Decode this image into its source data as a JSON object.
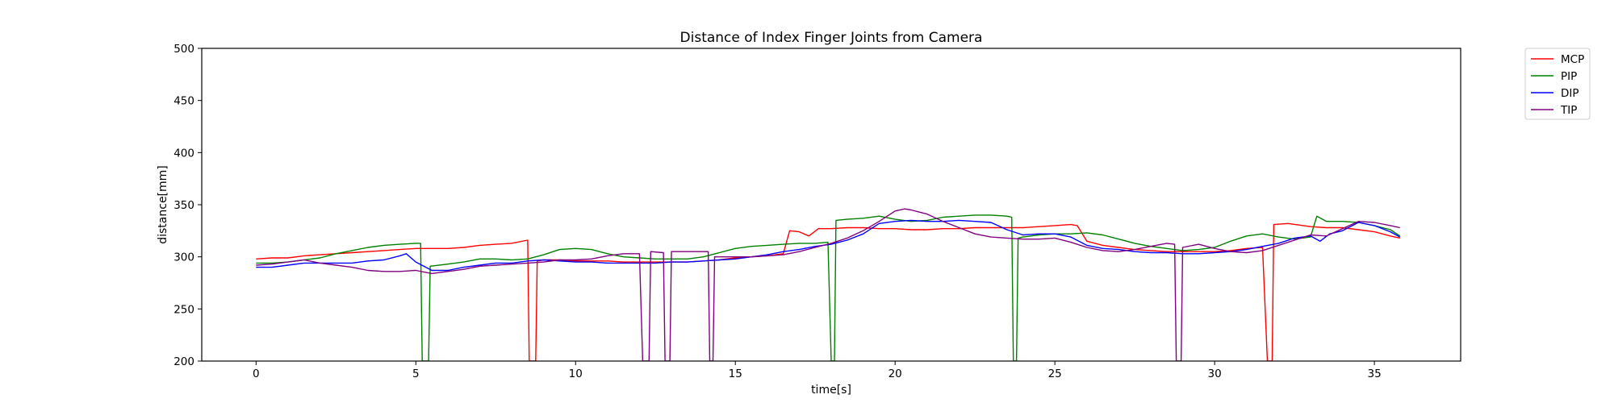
{
  "chart_data": {
    "type": "line",
    "title": "Distance of Index Finger Joints from Camera",
    "xlabel": "time[s]",
    "ylabel": "distance[mm]",
    "xlim": [
      -1.7,
      37.7
    ],
    "ylim": [
      200,
      500
    ],
    "xticks": [
      0,
      5,
      10,
      15,
      20,
      25,
      30,
      35
    ],
    "yticks": [
      200,
      250,
      300,
      350,
      400,
      450,
      500
    ],
    "grid": false,
    "legend": "outside-top-right",
    "series": [
      {
        "name": "MCP",
        "color": "#ff0000",
        "points": [
          [
            0,
            298
          ],
          [
            0.5,
            299
          ],
          [
            1,
            299
          ],
          [
            1.5,
            301
          ],
          [
            2,
            302
          ],
          [
            2.5,
            303
          ],
          [
            3,
            304
          ],
          [
            3.5,
            305
          ],
          [
            4,
            306
          ],
          [
            4.5,
            307
          ],
          [
            5,
            308
          ],
          [
            5.5,
            308
          ],
          [
            6,
            308
          ],
          [
            6.5,
            309
          ],
          [
            7,
            311
          ],
          [
            7.5,
            312
          ],
          [
            8,
            313
          ],
          [
            8.5,
            316
          ],
          [
            8.55,
            200
          ],
          [
            8.75,
            200
          ],
          [
            8.8,
            296
          ],
          [
            9,
            297
          ],
          [
            9.5,
            297
          ],
          [
            10,
            296
          ],
          [
            10.5,
            296
          ],
          [
            11,
            296
          ],
          [
            11.5,
            295
          ],
          [
            12,
            295
          ],
          [
            12.5,
            295
          ],
          [
            13,
            295
          ],
          [
            13.5,
            295
          ],
          [
            14,
            296
          ],
          [
            14.5,
            297
          ],
          [
            15,
            299
          ],
          [
            15.5,
            300
          ],
          [
            16,
            301
          ],
          [
            16.5,
            303
          ],
          [
            16.7,
            325
          ],
          [
            17,
            324
          ],
          [
            17.3,
            320
          ],
          [
            17.6,
            327
          ],
          [
            18,
            327
          ],
          [
            18.5,
            328
          ],
          [
            19,
            328
          ],
          [
            19.5,
            327
          ],
          [
            20,
            327
          ],
          [
            20.5,
            326
          ],
          [
            21,
            326
          ],
          [
            21.5,
            327
          ],
          [
            22,
            327
          ],
          [
            22.5,
            328
          ],
          [
            23,
            328
          ],
          [
            23.5,
            328
          ],
          [
            24,
            328
          ],
          [
            24.5,
            329
          ],
          [
            25,
            330
          ],
          [
            25.5,
            331
          ],
          [
            25.7,
            330
          ],
          [
            26,
            315
          ],
          [
            26.5,
            311
          ],
          [
            27,
            309
          ],
          [
            27.5,
            307
          ],
          [
            28,
            306
          ],
          [
            28.5,
            305
          ],
          [
            29,
            305
          ],
          [
            29.5,
            305
          ],
          [
            30,
            305
          ],
          [
            30.5,
            306
          ],
          [
            31,
            308
          ],
          [
            31.5,
            309
          ],
          [
            31.65,
            200
          ],
          [
            31.8,
            200
          ],
          [
            31.85,
            331
          ],
          [
            32.3,
            332
          ],
          [
            33,
            329
          ],
          [
            33.5,
            328
          ],
          [
            34,
            328
          ],
          [
            34.5,
            326
          ],
          [
            35,
            324
          ],
          [
            35.5,
            320
          ],
          [
            35.8,
            318
          ]
        ]
      },
      {
        "name": "PIP",
        "color": "#008000",
        "points": [
          [
            0,
            294
          ],
          [
            0.5,
            294
          ],
          [
            1,
            295
          ],
          [
            1.5,
            297
          ],
          [
            2,
            299
          ],
          [
            2.5,
            303
          ],
          [
            3,
            306
          ],
          [
            3.5,
            309
          ],
          [
            4,
            311
          ],
          [
            4.5,
            312
          ],
          [
            5,
            313
          ],
          [
            5.15,
            313
          ],
          [
            5.2,
            200
          ],
          [
            5.4,
            200
          ],
          [
            5.45,
            291
          ],
          [
            6,
            293
          ],
          [
            6.5,
            295
          ],
          [
            7,
            298
          ],
          [
            7.5,
            298
          ],
          [
            8,
            297
          ],
          [
            8.5,
            298
          ],
          [
            9,
            302
          ],
          [
            9.5,
            307
          ],
          [
            10,
            308
          ],
          [
            10.5,
            307
          ],
          [
            11,
            303
          ],
          [
            11.5,
            300
          ],
          [
            12,
            299
          ],
          [
            12.5,
            298
          ],
          [
            13,
            298
          ],
          [
            13.5,
            298
          ],
          [
            14,
            300
          ],
          [
            14.5,
            304
          ],
          [
            15,
            308
          ],
          [
            15.5,
            310
          ],
          [
            16,
            311
          ],
          [
            16.5,
            312
          ],
          [
            17,
            313
          ],
          [
            17.5,
            313
          ],
          [
            17.9,
            314
          ],
          [
            18,
            200
          ],
          [
            18.1,
            200
          ],
          [
            18.15,
            335
          ],
          [
            18.5,
            336
          ],
          [
            19,
            337
          ],
          [
            19.5,
            339
          ],
          [
            20,
            336
          ],
          [
            20.5,
            334
          ],
          [
            21,
            335
          ],
          [
            21.5,
            338
          ],
          [
            22,
            339
          ],
          [
            22.5,
            340
          ],
          [
            23,
            340
          ],
          [
            23.5,
            339
          ],
          [
            23.65,
            338
          ],
          [
            23.7,
            200
          ],
          [
            23.8,
            200
          ],
          [
            23.85,
            318
          ],
          [
            24,
            319
          ],
          [
            24.5,
            321
          ],
          [
            25,
            322
          ],
          [
            25.5,
            322
          ],
          [
            26,
            323
          ],
          [
            26.5,
            321
          ],
          [
            27,
            317
          ],
          [
            27.5,
            313
          ],
          [
            28,
            310
          ],
          [
            28.5,
            308
          ],
          [
            29,
            306
          ],
          [
            29.5,
            307
          ],
          [
            30,
            309
          ],
          [
            30.5,
            315
          ],
          [
            31,
            320
          ],
          [
            31.5,
            322
          ],
          [
            32,
            319
          ],
          [
            32.5,
            317
          ],
          [
            33,
            319
          ],
          [
            33.2,
            339
          ],
          [
            33.5,
            334
          ],
          [
            34,
            334
          ],
          [
            34.5,
            333
          ],
          [
            35,
            330
          ],
          [
            35.5,
            326
          ],
          [
            35.8,
            320
          ]
        ]
      },
      {
        "name": "DIP",
        "color": "#0000ff",
        "points": [
          [
            0,
            290
          ],
          [
            0.5,
            290
          ],
          [
            1,
            292
          ],
          [
            1.5,
            294
          ],
          [
            2,
            294
          ],
          [
            2.5,
            294
          ],
          [
            3,
            294
          ],
          [
            3.5,
            296
          ],
          [
            4,
            297
          ],
          [
            4.5,
            301
          ],
          [
            4.7,
            303
          ],
          [
            5,
            295
          ],
          [
            5.5,
            287
          ],
          [
            6,
            287
          ],
          [
            6.5,
            290
          ],
          [
            7,
            292
          ],
          [
            7.5,
            294
          ],
          [
            8,
            294
          ],
          [
            8.5,
            296
          ],
          [
            9,
            297
          ],
          [
            9.5,
            296
          ],
          [
            10,
            295
          ],
          [
            10.5,
            295
          ],
          [
            11,
            294
          ],
          [
            11.5,
            294
          ],
          [
            12,
            294
          ],
          [
            12.5,
            294
          ],
          [
            13,
            295
          ],
          [
            13.5,
            295
          ],
          [
            14,
            296
          ],
          [
            14.5,
            297
          ],
          [
            15,
            298
          ],
          [
            15.5,
            300
          ],
          [
            16,
            302
          ],
          [
            16.5,
            305
          ],
          [
            17,
            307
          ],
          [
            17.5,
            310
          ],
          [
            18,
            312
          ],
          [
            18.5,
            316
          ],
          [
            19,
            322
          ],
          [
            19.5,
            332
          ],
          [
            20,
            334
          ],
          [
            20.5,
            335
          ],
          [
            21,
            334
          ],
          [
            21.5,
            334
          ],
          [
            22,
            335
          ],
          [
            22.5,
            334
          ],
          [
            23,
            333
          ],
          [
            23.5,
            326
          ],
          [
            24,
            321
          ],
          [
            24.5,
            322
          ],
          [
            25,
            322
          ],
          [
            25.5,
            319
          ],
          [
            26,
            311
          ],
          [
            26.5,
            308
          ],
          [
            27,
            307
          ],
          [
            27.5,
            305
          ],
          [
            28,
            304
          ],
          [
            28.5,
            304
          ],
          [
            29,
            303
          ],
          [
            29.5,
            303
          ],
          [
            30,
            304
          ],
          [
            30.5,
            305
          ],
          [
            31,
            307
          ],
          [
            31.5,
            310
          ],
          [
            32,
            313
          ],
          [
            32.5,
            318
          ],
          [
            33,
            320
          ],
          [
            33.3,
            315
          ],
          [
            33.6,
            322
          ],
          [
            34,
            325
          ],
          [
            34.5,
            333
          ],
          [
            35,
            330
          ],
          [
            35.5,
            324
          ],
          [
            35.8,
            319
          ]
        ]
      },
      {
        "name": "TIP",
        "color": "#800080",
        "points": [
          [
            0,
            292
          ],
          [
            0.5,
            293
          ],
          [
            1,
            295
          ],
          [
            1.5,
            297
          ],
          [
            2,
            294
          ],
          [
            2.5,
            292
          ],
          [
            3,
            290
          ],
          [
            3.5,
            287
          ],
          [
            4,
            286
          ],
          [
            4.5,
            286
          ],
          [
            5,
            287
          ],
          [
            5.5,
            284
          ],
          [
            6,
            286
          ],
          [
            6.5,
            288
          ],
          [
            7,
            291
          ],
          [
            7.5,
            292
          ],
          [
            8,
            293
          ],
          [
            8.5,
            294
          ],
          [
            9,
            295
          ],
          [
            9.5,
            297
          ],
          [
            10,
            297
          ],
          [
            10.5,
            298
          ],
          [
            11,
            301
          ],
          [
            11.5,
            303
          ],
          [
            12,
            303
          ],
          [
            12.1,
            200
          ],
          [
            12.3,
            200
          ],
          [
            12.35,
            305
          ],
          [
            12.75,
            304
          ],
          [
            12.8,
            200
          ],
          [
            12.95,
            200
          ],
          [
            13,
            305
          ],
          [
            13.5,
            305
          ],
          [
            14,
            305
          ],
          [
            14.15,
            305
          ],
          [
            14.2,
            200
          ],
          [
            14.3,
            200
          ],
          [
            14.35,
            300
          ],
          [
            15,
            300
          ],
          [
            15.5,
            300
          ],
          [
            16,
            301
          ],
          [
            16.5,
            302
          ],
          [
            17,
            305
          ],
          [
            17.5,
            309
          ],
          [
            18,
            313
          ],
          [
            18.5,
            318
          ],
          [
            19,
            325
          ],
          [
            19.5,
            334
          ],
          [
            20,
            344
          ],
          [
            20.3,
            346
          ],
          [
            20.5,
            345
          ],
          [
            21,
            341
          ],
          [
            21.5,
            334
          ],
          [
            22,
            328
          ],
          [
            22.5,
            322
          ],
          [
            23,
            319
          ],
          [
            23.5,
            318
          ],
          [
            24,
            317
          ],
          [
            24.5,
            317
          ],
          [
            25,
            318
          ],
          [
            25.5,
            314
          ],
          [
            26,
            309
          ],
          [
            26.5,
            306
          ],
          [
            27,
            305
          ],
          [
            27.5,
            307
          ],
          [
            28,
            310
          ],
          [
            28.5,
            313
          ],
          [
            28.75,
            312
          ],
          [
            28.8,
            200
          ],
          [
            28.95,
            200
          ],
          [
            29,
            309
          ],
          [
            29.5,
            312
          ],
          [
            30,
            308
          ],
          [
            30.5,
            305
          ],
          [
            31,
            304
          ],
          [
            31.5,
            306
          ],
          [
            32,
            311
          ],
          [
            32.5,
            316
          ],
          [
            33,
            321
          ],
          [
            33.5,
            320
          ],
          [
            34,
            327
          ],
          [
            34.5,
            334
          ],
          [
            35,
            333
          ],
          [
            35.5,
            330
          ],
          [
            35.8,
            328
          ]
        ]
      }
    ]
  }
}
